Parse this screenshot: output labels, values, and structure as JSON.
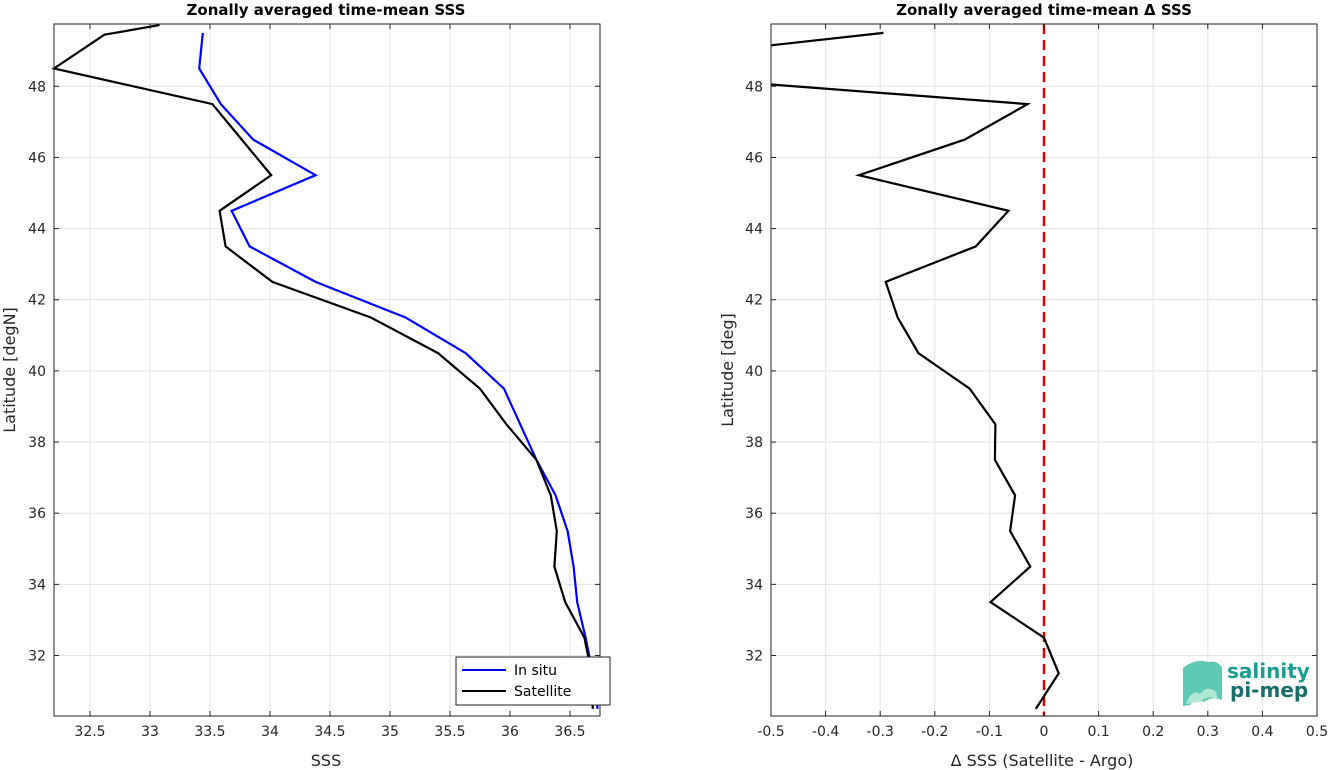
{
  "chart_data": [
    {
      "type": "line",
      "title": "Zonally averaged time-mean SSS",
      "xlabel": "SSS",
      "ylabel": "Latitude [degN]",
      "xlim": [
        32.2,
        36.75
      ],
      "ylim": [
        30.3,
        49.75
      ],
      "xticks": [
        32.5,
        33,
        33.5,
        34,
        34.5,
        35,
        35.5,
        36,
        36.5
      ],
      "xtick_labels": [
        "32.5",
        "33",
        "33.5",
        "34",
        "34.5",
        "35",
        "35.5",
        "36",
        "36.5"
      ],
      "yticks": [
        32,
        34,
        36,
        38,
        40,
        42,
        44,
        46,
        48
      ],
      "ytick_labels": [
        "32",
        "34",
        "36",
        "38",
        "40",
        "42",
        "44",
        "46",
        "48"
      ],
      "grid": true,
      "legend_position": "bottom-right",
      "series": [
        {
          "name": "In situ",
          "color": "#0000ff",
          "x": [
            36.73,
            36.69,
            36.63,
            36.56,
            36.53,
            36.48,
            36.38,
            36.22,
            35.95,
            35.63,
            35.13,
            34.38,
            33.83,
            33.68,
            34.38,
            33.86,
            33.59,
            33.41,
            33.44
          ],
          "y": [
            30.5,
            31.5,
            32.5,
            33.5,
            34.5,
            35.5,
            36.5,
            37.5,
            39.5,
            40.5,
            41.5,
            42.5,
            43.5,
            44.5,
            45.5,
            46.5,
            47.5,
            48.5,
            49.5
          ]
        },
        {
          "name": "Satellite",
          "color": "#000000",
          "x": [
            36.69,
            36.68,
            36.62,
            36.46,
            36.37,
            36.39,
            36.34,
            36.22,
            35.97,
            35.75,
            35.4,
            34.84,
            34.02,
            33.63,
            33.58,
            34.01,
            33.52,
            32.2,
            32.62,
            33.08
          ],
          "y": [
            30.5,
            31.5,
            32.5,
            33.5,
            34.5,
            35.5,
            36.5,
            37.5,
            38.5,
            39.5,
            40.5,
            41.5,
            42.5,
            43.5,
            44.5,
            45.5,
            47.5,
            48.5,
            49.45,
            49.72
          ]
        }
      ]
    },
    {
      "type": "line",
      "title": "Zonally averaged time-mean Δ SSS",
      "xlabel": "Δ SSS (Satellite - Argo)",
      "ylabel": "Latitude [deg]",
      "xlim": [
        -0.5,
        0.5
      ],
      "ylim": [
        30.3,
        49.75
      ],
      "xticks": [
        -0.5,
        -0.4,
        -0.3,
        -0.2,
        -0.1,
        0,
        0.1,
        0.2,
        0.3,
        0.4,
        0.5
      ],
      "xtick_labels": [
        "-0.5",
        "-0.4",
        "-0.3",
        "-0.2",
        "-0.1",
        "0",
        "0.1",
        "0.2",
        "0.3",
        "0.4",
        "0.5"
      ],
      "yticks": [
        32,
        34,
        36,
        38,
        40,
        42,
        44,
        46,
        48
      ],
      "ytick_labels": [
        "32",
        "34",
        "36",
        "38",
        "40",
        "42",
        "44",
        "46",
        "48"
      ],
      "grid": true,
      "reference_line": {
        "x": 0,
        "color": "#e00000",
        "style": "dashed"
      },
      "series": [
        {
          "color": "#000000",
          "x": [
            -0.015,
            0.027,
            0.0,
            -0.098,
            -0.025,
            -0.062,
            -0.053,
            -0.09,
            -0.089,
            -0.136,
            -0.23,
            -0.268,
            -0.29,
            -0.125,
            -0.065,
            -0.339,
            -0.145,
            -0.03,
            -0.5
          ],
          "y": [
            30.5,
            31.5,
            32.5,
            33.5,
            34.5,
            35.5,
            36.5,
            37.5,
            38.5,
            39.5,
            40.5,
            41.5,
            42.5,
            43.5,
            44.5,
            45.5,
            46.5,
            47.5,
            48.05
          ]
        },
        {
          "color": "#000000",
          "x": [
            -0.5,
            -0.294
          ],
          "y": [
            49.15,
            49.5
          ]
        }
      ]
    }
  ],
  "logo": {
    "line1": "salinity",
    "line2": "pi-mep",
    "color1": "#1a9e8f",
    "color2": "#1a6e6a"
  }
}
